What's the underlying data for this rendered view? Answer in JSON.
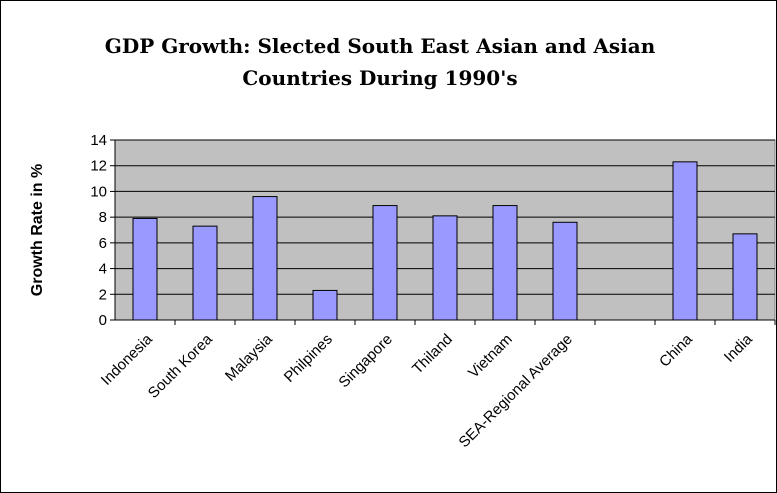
{
  "chart_data": {
    "type": "bar",
    "title_line1": "GDP Growth: Slected South East Asian and Asian",
    "title_line2": "Countries During 1990's",
    "xlabel": "",
    "ylabel": "Growth Rate in %",
    "ylim": [
      0,
      14
    ],
    "yticks": [
      "0",
      "2",
      "4",
      "6",
      "8",
      "10",
      "12",
      "14"
    ],
    "grid": true,
    "legend": "none",
    "categories": [
      "Indonesia",
      "South Korea",
      "Malaysia",
      "Philpines",
      "Singapore",
      "Thiland",
      "Vietnam",
      "SEA-Regional Average",
      "",
      "China",
      "India"
    ],
    "values": [
      7.9,
      7.3,
      9.6,
      2.3,
      8.9,
      8.1,
      8.9,
      7.6,
      null,
      12.3,
      6.7
    ],
    "colors": {
      "plot_background": "#c0c0c0",
      "bar_fill": "#9999ff",
      "bar_stroke": "#000000",
      "gridline": "#000000"
    }
  }
}
